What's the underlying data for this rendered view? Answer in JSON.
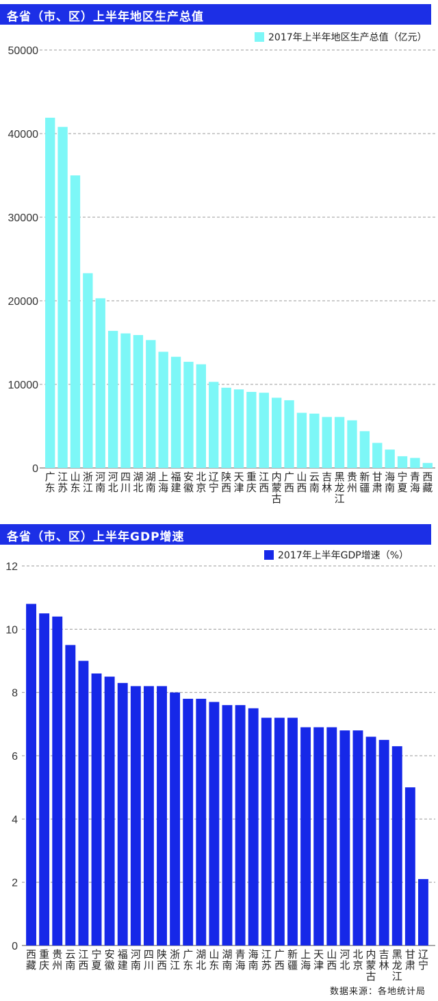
{
  "charts": [
    {
      "banner_title": "各省（市、区）上半年地区生产总值",
      "legend": "2017年上半年地区生产总值（亿元）",
      "legend_color": "#7df7f7",
      "bar_color": "#7df7f7"
    },
    {
      "banner_title": "各省（市、区）上半年GDP增速",
      "legend": "2017年上半年GDP增速（%）",
      "legend_color": "#1628e8",
      "bar_color": "#1628e8"
    }
  ],
  "banner_color": "#1c2fe6",
  "source": "数据来源：各地统计局",
  "chart_data": [
    {
      "type": "bar",
      "title": "各省（市、区）上半年地区生产总值",
      "categories": [
        "广东",
        "江苏",
        "山东",
        "浙江",
        "河南",
        "河北",
        "四川",
        "湖北",
        "湖南",
        "上海",
        "福建",
        "安徽",
        "北京",
        "辽宁",
        "陕西",
        "天津",
        "重庆",
        "江西",
        "内蒙古",
        "广西",
        "山西",
        "云南",
        "吉林",
        "黑龙江",
        "贵州",
        "新疆",
        "甘肃",
        "海南",
        "宁夏",
        "青海",
        "西藏"
      ],
      "series": [
        {
          "name": "2017年上半年地区生产总值（亿元）",
          "values": [
            41900,
            40800,
            35000,
            23300,
            20300,
            16400,
            16100,
            15900,
            15300,
            13900,
            13300,
            12700,
            12400,
            10300,
            9600,
            9400,
            9100,
            9000,
            8400,
            8100,
            6600,
            6500,
            6100,
            6100,
            5700,
            4400,
            3000,
            2200,
            1400,
            1200,
            600
          ]
        }
      ],
      "ylim": [
        0,
        50000
      ],
      "yticks": [
        0,
        10000,
        20000,
        30000,
        40000,
        50000
      ],
      "grid": true,
      "legend_position": "top-right"
    },
    {
      "type": "bar",
      "title": "各省（市、区）上半年GDP增速",
      "categories": [
        "西藏",
        "重庆",
        "贵州",
        "云南",
        "江西",
        "宁夏",
        "安徽",
        "福建",
        "河南",
        "四川",
        "陕西",
        "浙江",
        "广东",
        "湖北",
        "山东",
        "湖南",
        "青海",
        "海南",
        "江苏",
        "广西",
        "新疆",
        "上海",
        "天津",
        "山西",
        "河北",
        "北京",
        "内蒙古",
        "吉林",
        "黑龙江",
        "甘肃",
        "辽宁"
      ],
      "series": [
        {
          "name": "2017年上半年GDP增速（%）",
          "values": [
            10.8,
            10.5,
            10.4,
            9.5,
            9.0,
            8.6,
            8.5,
            8.3,
            8.2,
            8.2,
            8.2,
            8.0,
            7.8,
            7.8,
            7.7,
            7.6,
            7.6,
            7.5,
            7.2,
            7.2,
            7.2,
            6.9,
            6.9,
            6.9,
            6.8,
            6.8,
            6.6,
            6.5,
            6.3,
            5.0,
            2.1
          ]
        }
      ],
      "ylim": [
        0,
        12
      ],
      "yticks": [
        0,
        2,
        4,
        6,
        8,
        10,
        12
      ],
      "grid": true,
      "legend_position": "top-right"
    }
  ]
}
